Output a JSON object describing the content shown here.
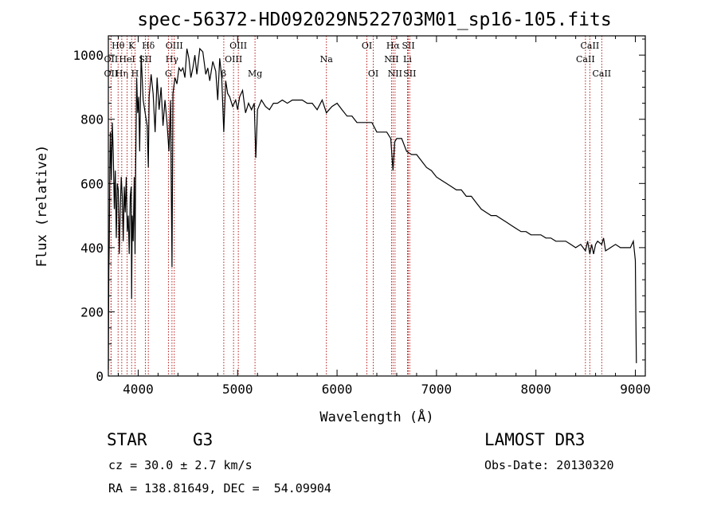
{
  "chart_data": {
    "type": "line",
    "title": "spec-56372-HD092029N522703M01_sp16-105.fits",
    "xlabel": "Wavelength (Å)",
    "ylabel": "Flux (relative)",
    "xlim": [
      3700,
      9100
    ],
    "ylim": [
      0,
      1060
    ],
    "x_ticks": [
      4000,
      5000,
      6000,
      7000,
      8000,
      9000
    ],
    "y_ticks": [
      0,
      200,
      400,
      600,
      800,
      1000
    ],
    "series": [
      {
        "name": "spectrum",
        "x": [
          3700,
          3705,
          3710,
          3715,
          3720,
          3730,
          3740,
          3750,
          3760,
          3770,
          3780,
          3790,
          3800,
          3810,
          3820,
          3830,
          3840,
          3850,
          3860,
          3870,
          3880,
          3890,
          3900,
          3910,
          3920,
          3930,
          3934,
          3940,
          3950,
          3960,
          3968,
          3975,
          3985,
          3995,
          4005,
          4015,
          4030,
          4050,
          4070,
          4090,
          4102,
          4110,
          4130,
          4150,
          4170,
          4190,
          4210,
          4230,
          4250,
          4270,
          4290,
          4310,
          4325,
          4340,
          4350,
          4370,
          4390,
          4410,
          4430,
          4450,
          4470,
          4490,
          4510,
          4530,
          4550,
          4570,
          4590,
          4620,
          4650,
          4680,
          4700,
          4720,
          4750,
          4780,
          4800,
          4820,
          4840,
          4861,
          4880,
          4900,
          4920,
          4950,
          4980,
          5000,
          5020,
          5050,
          5080,
          5110,
          5140,
          5167,
          5183,
          5200,
          5240,
          5280,
          5320,
          5360,
          5400,
          5450,
          5500,
          5550,
          5600,
          5650,
          5700,
          5750,
          5800,
          5850,
          5893,
          5920,
          5950,
          6000,
          6050,
          6100,
          6150,
          6200,
          6250,
          6300,
          6350,
          6400,
          6450,
          6500,
          6540,
          6563,
          6580,
          6600,
          6650,
          6700,
          6750,
          6800,
          6850,
          6900,
          6950,
          7000,
          7050,
          7100,
          7150,
          7200,
          7250,
          7300,
          7350,
          7400,
          7450,
          7500,
          7550,
          7600,
          7650,
          7700,
          7750,
          7800,
          7850,
          7900,
          7950,
          8000,
          8050,
          8100,
          8150,
          8200,
          8250,
          8300,
          8350,
          8400,
          8450,
          8498,
          8520,
          8542,
          8560,
          8580,
          8600,
          8620,
          8662,
          8680,
          8700,
          8750,
          8800,
          8850,
          8900,
          8950,
          8980,
          9000,
          9005,
          9010
        ],
        "y": [
          20,
          330,
          420,
          650,
          760,
          610,
          790,
          690,
          520,
          640,
          430,
          600,
          580,
          380,
          520,
          620,
          560,
          420,
          590,
          510,
          620,
          450,
          500,
          380,
          560,
          590,
          240,
          500,
          420,
          620,
          380,
          650,
          930,
          820,
          870,
          700,
          1000,
          860,
          820,
          780,
          650,
          870,
          940,
          880,
          760,
          930,
          830,
          900,
          780,
          860,
          790,
          700,
          860,
          340,
          880,
          930,
          910,
          960,
          950,
          960,
          930,
          1020,
          990,
          930,
          960,
          1000,
          940,
          1020,
          1010,
          940,
          960,
          920,
          980,
          950,
          860,
          990,
          930,
          760,
          920,
          880,
          870,
          840,
          860,
          830,
          870,
          890,
          820,
          850,
          830,
          850,
          680,
          830,
          860,
          840,
          830,
          850,
          850,
          860,
          850,
          860,
          860,
          860,
          850,
          850,
          830,
          860,
          820,
          830,
          840,
          850,
          830,
          810,
          810,
          790,
          790,
          790,
          790,
          760,
          760,
          760,
          740,
          640,
          730,
          740,
          740,
          700,
          690,
          690,
          670,
          650,
          640,
          620,
          610,
          600,
          590,
          580,
          580,
          560,
          560,
          540,
          520,
          510,
          500,
          500,
          490,
          480,
          470,
          460,
          450,
          450,
          440,
          440,
          440,
          430,
          430,
          420,
          420,
          420,
          410,
          400,
          410,
          390,
          420,
          380,
          410,
          380,
          410,
          420,
          410,
          430,
          390,
          400,
          410,
          400,
          400,
          400,
          420,
          360,
          200,
          40
        ]
      }
    ],
    "spectral_lines": [
      {
        "label": "Hθ",
        "wl": 3798,
        "row": 1
      },
      {
        "label": "OII",
        "wl": 3727,
        "row": 2
      },
      {
        "label": "OII",
        "wl": 3727,
        "row": 3
      },
      {
        "label": "Hη",
        "wl": 3835,
        "row": 3
      },
      {
        "label": "HeI",
        "wl": 3889,
        "row": 2
      },
      {
        "label": "K",
        "wl": 3934,
        "row": 1
      },
      {
        "label": "SII",
        "wl": 4072,
        "row": 2
      },
      {
        "label": "H",
        "wl": 3968,
        "row": 3
      },
      {
        "label": "Hδ",
        "wl": 4102,
        "row": 1
      },
      {
        "label": "OIII",
        "wl": 4363,
        "row": 1
      },
      {
        "label": "Hγ",
        "wl": 4340,
        "row": 2
      },
      {
        "label": "G",
        "wl": 4304,
        "row": 3
      },
      {
        "label": "OIII",
        "wl": 5007,
        "row": 1
      },
      {
        "label": "OIII",
        "wl": 4959,
        "row": 2
      },
      {
        "label": "β",
        "wl": 4861,
        "row": 3
      },
      {
        "label": "Mg",
        "wl": 5175,
        "row": 3
      },
      {
        "label": "Na",
        "wl": 5893,
        "row": 2
      },
      {
        "label": "OI",
        "wl": 6300,
        "row": 1
      },
      {
        "label": "OI",
        "wl": 6364,
        "row": 3
      },
      {
        "label": "Hα",
        "wl": 6563,
        "row": 1
      },
      {
        "label": "SII",
        "wl": 6717,
        "row": 1
      },
      {
        "label": "NII",
        "wl": 6548,
        "row": 2
      },
      {
        "label": "Li",
        "wl": 6708,
        "row": 2
      },
      {
        "label": "NII",
        "wl": 6583,
        "row": 3
      },
      {
        "label": "SII",
        "wl": 6731,
        "row": 3
      },
      {
        "label": "CaII",
        "wl": 8542,
        "row": 1
      },
      {
        "label": "CaII",
        "wl": 8498,
        "row": 2
      },
      {
        "label": "CaII",
        "wl": 8662,
        "row": 3
      }
    ]
  },
  "info": {
    "object_class": "STAR",
    "subclass": "G3",
    "survey": "LAMOST DR3",
    "redshift": "cz = 30.0 ± 2.7 km/s",
    "obs_date": "Obs-Date: 20130320",
    "coords": "RA = 138.81649, DEC =  54.09904"
  },
  "colors": {
    "axes": "#000000",
    "spectrum": "#000000",
    "line_markers": "#b00000"
  }
}
